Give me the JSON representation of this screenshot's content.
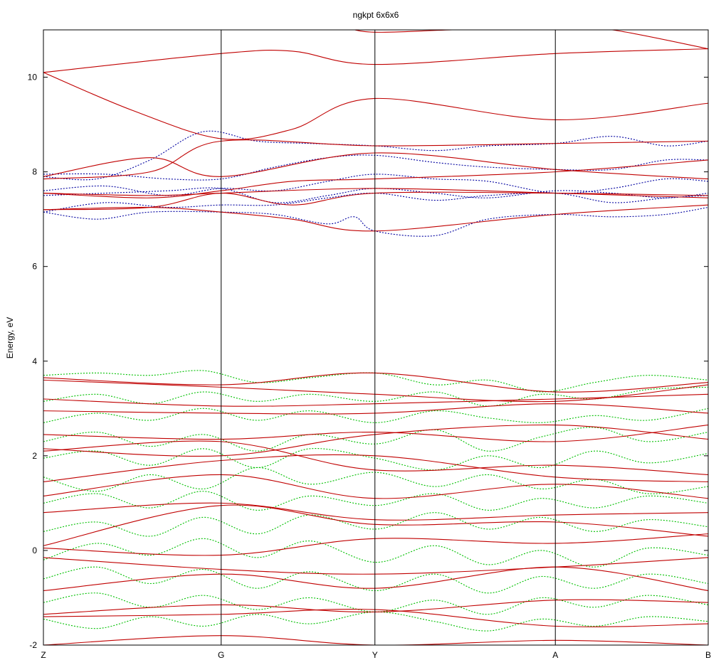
{
  "chart_data": {
    "type": "line",
    "title": "ngkpt 6x6x6",
    "xlabel": "",
    "ylabel": "Energy, eV",
    "ylim": [
      -2,
      11
    ],
    "y_ticks": [
      -2,
      0,
      2,
      4,
      6,
      8,
      10
    ],
    "x_ticks": [
      {
        "label": "Z",
        "x": 0
      },
      {
        "label": "G",
        "x": 1
      },
      {
        "label": "Y",
        "x": 1.865
      },
      {
        "label": "A",
        "x": 2.88
      },
      {
        "label": "B",
        "x": 3.74
      }
    ],
    "xlim": [
      0,
      3.74
    ],
    "grid": false,
    "legend": "none",
    "colors": {
      "interp_dashed_conduction": "#0000a0",
      "interp_dashed_valence": "#00c000",
      "reference_solid": "#c00000"
    },
    "series": [
      {
        "style": "solid",
        "color": "reference_solid",
        "x": [
          0,
          1,
          1.4,
          1.865,
          2.88,
          3.74
        ],
        "y": [
          10.1,
          10.5,
          10.55,
          10.27,
          10.5,
          10.6
        ]
      },
      {
        "style": "solid",
        "color": "reference_solid",
        "x": [
          0,
          0.5,
          1,
          1.4,
          1.865,
          2.88,
          3.74
        ],
        "y": [
          10.1,
          9.3,
          8.7,
          8.9,
          9.55,
          9.1,
          9.45
        ]
      },
      {
        "style": "solid",
        "color": "reference_solid",
        "x": [
          1.7,
          1.865,
          2.3,
          2.88,
          3.2,
          3.74
        ],
        "y": [
          11.05,
          10.95,
          11.0,
          11.05,
          11.0,
          10.6
        ]
      },
      {
        "style": "solid",
        "color": "reference_solid",
        "x": [
          0,
          0.6,
          1,
          1.865,
          2.88,
          3.74
        ],
        "y": [
          7.9,
          8.3,
          7.9,
          8.4,
          8.05,
          7.85
        ]
      },
      {
        "style": "solid",
        "color": "reference_solid",
        "x": [
          0,
          0.6,
          1,
          1.865,
          2.88,
          3.74
        ],
        "y": [
          7.85,
          8.0,
          8.65,
          8.55,
          8.6,
          8.65
        ]
      },
      {
        "style": "solid",
        "color": "reference_solid",
        "x": [
          0,
          0.6,
          1,
          1.4,
          1.865,
          2.88,
          3.74
        ],
        "y": [
          7.55,
          7.45,
          7.6,
          7.8,
          7.85,
          8.0,
          8.25
        ]
      },
      {
        "style": "solid",
        "color": "reference_solid",
        "x": [
          0,
          0.6,
          1,
          1.865,
          2.88,
          3.74
        ],
        "y": [
          7.55,
          7.5,
          7.55,
          7.65,
          7.55,
          7.45
        ]
      },
      {
        "style": "solid",
        "color": "reference_solid",
        "x": [
          0,
          0.6,
          1,
          1.4,
          1.865,
          2.88,
          3.74
        ],
        "y": [
          7.2,
          7.25,
          7.55,
          7.3,
          7.55,
          7.55,
          7.5
        ]
      },
      {
        "style": "solid",
        "color": "reference_solid",
        "x": [
          0,
          0.6,
          1,
          1.4,
          1.865,
          2.88,
          3.74
        ],
        "y": [
          7.2,
          7.25,
          7.15,
          7.0,
          6.75,
          7.1,
          7.3
        ]
      },
      {
        "style": "dashed",
        "color": "interp_dashed_conduction",
        "x": [
          0,
          0.3,
          0.6,
          0.9,
          1.2,
          1.5,
          1.865,
          2.2,
          2.5,
          2.88,
          3.2,
          3.5,
          3.74
        ],
        "y": [
          7.9,
          7.85,
          8.25,
          8.85,
          8.65,
          8.6,
          8.55,
          8.45,
          8.55,
          8.6,
          8.75,
          8.55,
          8.65
        ]
      },
      {
        "style": "dashed",
        "color": "interp_dashed_conduction",
        "x": [
          0,
          0.35,
          0.7,
          1.0,
          1.3,
          1.6,
          1.865,
          2.2,
          2.5,
          2.88,
          3.2,
          3.5,
          3.74
        ],
        "y": [
          7.95,
          7.95,
          7.85,
          7.85,
          8.1,
          8.3,
          8.35,
          8.2,
          8.1,
          8.05,
          8.05,
          8.25,
          8.25
        ]
      },
      {
        "style": "dashed",
        "color": "interp_dashed_conduction",
        "x": [
          0,
          0.35,
          0.7,
          1.0,
          1.3,
          1.6,
          1.865,
          2.2,
          2.5,
          2.88,
          3.2,
          3.5,
          3.74
        ],
        "y": [
          7.6,
          7.7,
          7.5,
          7.65,
          7.6,
          7.8,
          7.95,
          7.85,
          7.8,
          7.55,
          7.65,
          7.85,
          7.8
        ]
      },
      {
        "style": "dashed",
        "color": "interp_dashed_conduction",
        "x": [
          0,
          0.35,
          0.7,
          1.0,
          1.3,
          1.6,
          1.865,
          2.2,
          2.5,
          2.88,
          3.2,
          3.5,
          3.74
        ],
        "y": [
          7.5,
          7.55,
          7.6,
          7.65,
          7.35,
          7.5,
          7.65,
          7.55,
          7.45,
          7.6,
          7.55,
          7.45,
          7.55
        ]
      },
      {
        "style": "dashed",
        "color": "interp_dashed_conduction",
        "x": [
          0,
          0.35,
          0.7,
          1.0,
          1.3,
          1.6,
          1.865,
          2.2,
          2.5,
          2.88,
          3.2,
          3.5,
          3.74
        ],
        "y": [
          7.15,
          7.35,
          7.25,
          7.3,
          7.3,
          7.45,
          7.55,
          7.4,
          7.5,
          7.55,
          7.35,
          7.45,
          7.5
        ]
      },
      {
        "style": "dashed",
        "color": "interp_dashed_conduction",
        "x": [
          0,
          0.3,
          0.6,
          1.0,
          1.3,
          1.6,
          1.75,
          1.865,
          2.2,
          2.5,
          2.88,
          3.2,
          3.5,
          3.74
        ],
        "y": [
          7.15,
          7.0,
          7.15,
          7.15,
          7.1,
          6.9,
          7.05,
          6.75,
          6.65,
          7.0,
          7.1,
          7.05,
          7.1,
          7.25
        ]
      },
      {
        "style": "solid",
        "color": "reference_solid",
        "x": [
          0,
          1,
          1.865,
          2.88,
          3.74
        ],
        "y": [
          3.65,
          3.5,
          3.75,
          3.35,
          3.55
        ]
      },
      {
        "style": "solid",
        "color": "reference_solid",
        "x": [
          0,
          1,
          1.865,
          2.88,
          3.74
        ],
        "y": [
          3.6,
          3.45,
          3.3,
          3.15,
          3.5
        ]
      },
      {
        "style": "solid",
        "color": "reference_solid",
        "x": [
          0,
          1,
          1.865,
          2.88,
          3.74
        ],
        "y": [
          3.2,
          3.05,
          3.1,
          3.2,
          3.3
        ]
      },
      {
        "style": "solid",
        "color": "reference_solid",
        "x": [
          0,
          1,
          1.865,
          2.88,
          3.74
        ],
        "y": [
          2.95,
          2.9,
          2.9,
          3.1,
          2.9
        ]
      },
      {
        "style": "solid",
        "color": "reference_solid",
        "x": [
          0,
          1,
          1.865,
          2.88,
          3.74
        ],
        "y": [
          2.45,
          2.35,
          2.5,
          2.3,
          2.65
        ]
      },
      {
        "style": "solid",
        "color": "reference_solid",
        "x": [
          0,
          1,
          1.865,
          2.88,
          3.74
        ],
        "y": [
          2.15,
          2.0,
          2.45,
          2.65,
          2.35
        ]
      },
      {
        "style": "solid",
        "color": "reference_solid",
        "x": [
          0,
          1,
          1.865,
          2.88,
          3.74
        ],
        "y": [
          2.1,
          2.3,
          1.7,
          1.8,
          1.6
        ]
      },
      {
        "style": "solid",
        "color": "reference_solid",
        "x": [
          0,
          1,
          1.865,
          2.88,
          3.74
        ],
        "y": [
          1.45,
          1.9,
          2.0,
          1.55,
          1.45
        ]
      },
      {
        "style": "solid",
        "color": "reference_solid",
        "x": [
          0,
          1,
          1.865,
          2.88,
          3.74
        ],
        "y": [
          1.15,
          1.6,
          1.1,
          1.4,
          1.1
        ]
      },
      {
        "style": "solid",
        "color": "reference_solid",
        "x": [
          0,
          1,
          1.865,
          2.88,
          3.74
        ],
        "y": [
          0.8,
          1.0,
          0.65,
          0.75,
          0.8
        ]
      },
      {
        "style": "solid",
        "color": "reference_solid",
        "x": [
          0,
          1,
          1.865,
          2.88,
          3.74
        ],
        "y": [
          0.1,
          0.95,
          0.55,
          0.6,
          0.3
        ]
      },
      {
        "style": "solid",
        "color": "reference_solid",
        "x": [
          0,
          1,
          1.865,
          2.88,
          3.74
        ],
        "y": [
          0.05,
          -0.1,
          0.25,
          0.15,
          0.35
        ]
      },
      {
        "style": "solid",
        "color": "reference_solid",
        "x": [
          0,
          1,
          1.865,
          2.88,
          3.74
        ],
        "y": [
          -0.15,
          -0.4,
          -0.5,
          -0.35,
          -0.15
        ]
      },
      {
        "style": "solid",
        "color": "reference_solid",
        "x": [
          0,
          1,
          1.865,
          2.88,
          3.74
        ],
        "y": [
          -0.85,
          -0.5,
          -0.8,
          -0.35,
          -0.85
        ]
      },
      {
        "style": "solid",
        "color": "reference_solid",
        "x": [
          0,
          1,
          1.865,
          2.88,
          3.74
        ],
        "y": [
          -1.35,
          -1.15,
          -1.3,
          -1.05,
          -1.1
        ]
      },
      {
        "style": "solid",
        "color": "reference_solid",
        "x": [
          0,
          1,
          1.865,
          2.88,
          3.74
        ],
        "y": [
          -1.4,
          -1.35,
          -1.25,
          -1.6,
          -1.55
        ]
      },
      {
        "style": "solid",
        "color": "reference_solid",
        "x": [
          0,
          1,
          1.865,
          2.88,
          3.74
        ],
        "y": [
          -2.0,
          -1.8,
          -2.0,
          -1.9,
          -2.0
        ]
      },
      {
        "style": "dashed",
        "color": "interp_dashed_valence",
        "x": [
          0,
          0.3,
          0.6,
          0.9,
          1.2,
          1.5,
          1.865,
          2.2,
          2.5,
          2.8,
          3.1,
          3.4,
          3.74
        ],
        "y": [
          3.7,
          3.75,
          3.7,
          3.8,
          3.55,
          3.65,
          3.75,
          3.5,
          3.6,
          3.35,
          3.55,
          3.7,
          3.6
        ]
      },
      {
        "style": "dashed",
        "color": "interp_dashed_valence",
        "x": [
          0,
          0.3,
          0.6,
          0.9,
          1.2,
          1.5,
          1.865,
          2.2,
          2.5,
          2.8,
          3.1,
          3.4,
          3.74
        ],
        "y": [
          3.15,
          3.3,
          3.1,
          3.35,
          3.15,
          3.3,
          3.15,
          3.35,
          3.05,
          3.3,
          3.2,
          3.4,
          3.45
        ]
      },
      {
        "style": "dashed",
        "color": "interp_dashed_valence",
        "x": [
          0,
          0.3,
          0.6,
          0.9,
          1.2,
          1.5,
          1.865,
          2.2,
          2.5,
          2.8,
          3.1,
          3.4,
          3.74
        ],
        "y": [
          2.7,
          2.9,
          2.75,
          3.0,
          2.75,
          2.95,
          2.7,
          2.95,
          2.8,
          2.7,
          2.85,
          2.75,
          3.0
        ]
      },
      {
        "style": "dashed",
        "color": "interp_dashed_valence",
        "x": [
          0,
          0.3,
          0.6,
          0.9,
          1.2,
          1.5,
          1.865,
          2.2,
          2.5,
          2.8,
          3.1,
          3.4,
          3.74
        ],
        "y": [
          2.3,
          2.5,
          2.2,
          2.45,
          2.1,
          2.45,
          2.25,
          2.55,
          2.1,
          2.4,
          2.6,
          2.3,
          2.5
        ]
      },
      {
        "style": "dashed",
        "color": "interp_dashed_valence",
        "x": [
          0,
          0.3,
          0.6,
          0.9,
          1.2,
          1.5,
          1.865,
          2.2,
          2.5,
          2.8,
          3.1,
          3.4,
          3.74
        ],
        "y": [
          1.95,
          2.1,
          1.8,
          2.15,
          1.75,
          2.15,
          1.95,
          1.7,
          2.0,
          1.75,
          2.1,
          1.85,
          2.05
        ]
      },
      {
        "style": "dashed",
        "color": "interp_dashed_valence",
        "x": [
          0,
          0.3,
          0.6,
          0.9,
          1.2,
          1.5,
          1.865,
          2.2,
          2.5,
          2.8,
          3.1,
          3.4,
          3.74
        ],
        "y": [
          1.55,
          1.25,
          1.6,
          1.3,
          1.75,
          1.4,
          1.65,
          1.35,
          1.6,
          1.3,
          1.5,
          1.2,
          1.35
        ]
      },
      {
        "style": "dashed",
        "color": "interp_dashed_valence",
        "x": [
          0,
          0.3,
          0.6,
          0.9,
          1.2,
          1.5,
          1.865,
          2.2,
          2.5,
          2.8,
          3.1,
          3.4,
          3.74
        ],
        "y": [
          1.0,
          1.2,
          0.9,
          1.25,
          0.85,
          1.15,
          0.95,
          1.2,
          0.85,
          1.1,
          0.9,
          1.15,
          1.0
        ]
      },
      {
        "style": "dashed",
        "color": "interp_dashed_valence",
        "x": [
          0,
          0.3,
          0.6,
          0.9,
          1.2,
          1.5,
          1.865,
          2.2,
          2.5,
          2.8,
          3.1,
          3.4,
          3.74
        ],
        "y": [
          0.4,
          0.6,
          0.3,
          0.7,
          0.35,
          0.75,
          0.45,
          0.8,
          0.45,
          0.7,
          0.4,
          0.65,
          0.5
        ]
      },
      {
        "style": "dashed",
        "color": "interp_dashed_valence",
        "x": [
          0,
          0.3,
          0.6,
          0.9,
          1.2,
          1.5,
          1.865,
          2.2,
          2.5,
          2.8,
          3.1,
          3.4,
          3.74
        ],
        "y": [
          -0.2,
          0.15,
          -0.1,
          0.25,
          -0.15,
          0.2,
          -0.25,
          0.1,
          -0.3,
          0.0,
          -0.35,
          0.05,
          -0.1
        ]
      },
      {
        "style": "dashed",
        "color": "interp_dashed_valence",
        "x": [
          0,
          0.3,
          0.6,
          0.9,
          1.2,
          1.5,
          1.865,
          2.2,
          2.5,
          2.8,
          3.1,
          3.4,
          3.74
        ],
        "y": [
          -0.6,
          -0.35,
          -0.7,
          -0.4,
          -0.8,
          -0.45,
          -0.85,
          -0.5,
          -0.9,
          -0.55,
          -0.8,
          -0.5,
          -0.7
        ]
      },
      {
        "style": "dashed",
        "color": "interp_dashed_valence",
        "x": [
          0,
          0.3,
          0.6,
          0.9,
          1.2,
          1.5,
          1.865,
          2.2,
          2.5,
          2.8,
          3.1,
          3.4,
          3.74
        ],
        "y": [
          -1.1,
          -0.9,
          -1.2,
          -0.95,
          -1.25,
          -1.0,
          -1.3,
          -1.05,
          -1.35,
          -1.0,
          -1.2,
          -0.95,
          -1.15
        ]
      },
      {
        "style": "dashed",
        "color": "interp_dashed_valence",
        "x": [
          0,
          0.3,
          0.6,
          0.9,
          1.2,
          1.5,
          1.865,
          2.2,
          2.5,
          2.8,
          3.1,
          3.4,
          3.74
        ],
        "y": [
          -1.45,
          -1.65,
          -1.4,
          -1.6,
          -1.35,
          -1.55,
          -1.3,
          -1.5,
          -1.7,
          -1.45,
          -1.6,
          -1.4,
          -1.5
        ]
      }
    ]
  }
}
